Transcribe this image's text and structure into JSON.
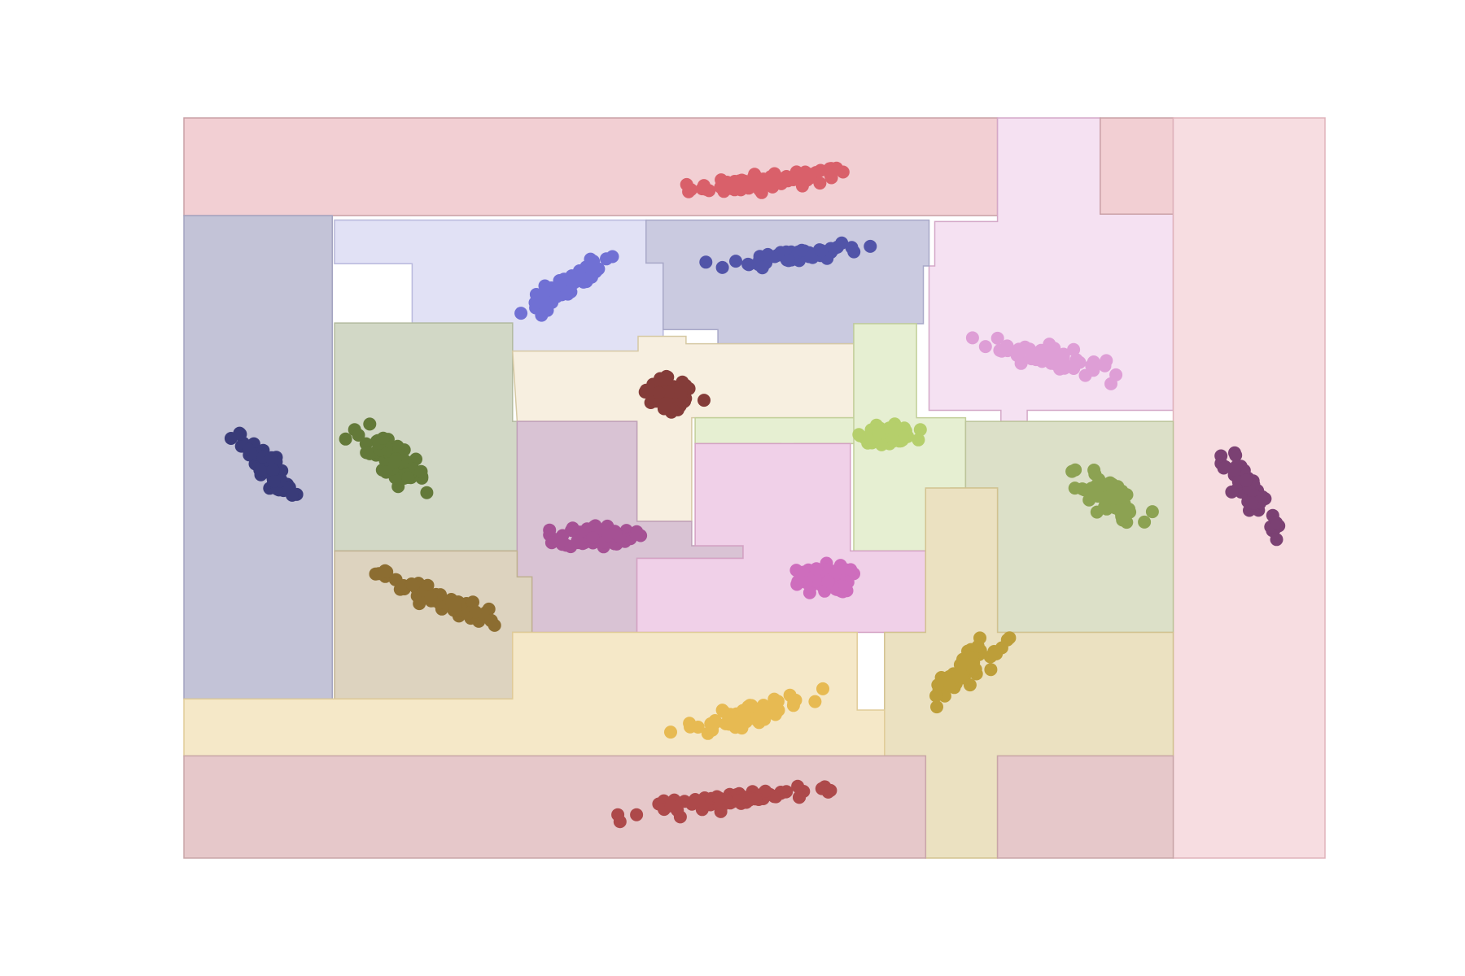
{
  "chart_data": {
    "type": "scatter",
    "title": "",
    "xlabel": "",
    "ylabel": "",
    "axes_visible": false,
    "grid": false,
    "legend": "none",
    "xlim": [
      0,
      100
    ],
    "ylim": [
      0,
      100
    ],
    "background_regions": [
      {
        "color": "#f2cfd3",
        "edge": "#c9a0a6",
        "poly": [
          [
            0,
            100
          ],
          [
            71.3,
            100
          ],
          [
            71.3,
            86.8
          ],
          [
            0,
            86.8
          ]
        ]
      },
      {
        "color": "#f5e1f2",
        "edge": "#d4a8c8",
        "poly": [
          [
            71.3,
            100
          ],
          [
            80.3,
            100
          ],
          [
            80.3,
            87
          ],
          [
            86.7,
            87
          ],
          [
            86.7,
            60.5
          ],
          [
            73.9,
            60.5
          ],
          [
            73.9,
            59
          ],
          [
            71.6,
            59
          ],
          [
            71.6,
            60.5
          ],
          [
            65.3,
            60.5
          ],
          [
            65.3,
            80
          ],
          [
            65.8,
            80
          ],
          [
            65.8,
            86
          ],
          [
            71.3,
            86
          ]
        ]
      },
      {
        "color": "#f2cfd3",
        "edge": "#c9a0a6",
        "poly": [
          [
            80.3,
            100
          ],
          [
            86.7,
            100
          ],
          [
            86.7,
            87
          ],
          [
            80.3,
            87
          ]
        ]
      },
      {
        "color": "#f7dde1",
        "edge": "#e0b3bb",
        "poly": [
          [
            86.7,
            100
          ],
          [
            100,
            100
          ],
          [
            100,
            0
          ],
          [
            86.7,
            0
          ]
        ]
      },
      {
        "color": "#c3c3d7",
        "edge": "#a3a3c0",
        "poly": [
          [
            0,
            86.8
          ],
          [
            13,
            86.8
          ],
          [
            13,
            21.5
          ],
          [
            0,
            21.5
          ]
        ]
      },
      {
        "color": "#d2d8c6",
        "edge": "#b3bb9f",
        "poly": [
          [
            13.2,
            86.2
          ],
          [
            19.8,
            86.2
          ],
          [
            19.8,
            80.3
          ],
          [
            13.2,
            80.3
          ]
        ]
      },
      {
        "color": "#e1e1f5",
        "edge": "#b9b9dd",
        "poly": [
          [
            13.2,
            86.2
          ],
          [
            40.5,
            86.2
          ],
          [
            40.5,
            80.4
          ],
          [
            42,
            80.4
          ],
          [
            42,
            66.3
          ],
          [
            28.8,
            66.3
          ],
          [
            28.8,
            72.3
          ],
          [
            20,
            72.3
          ],
          [
            20,
            80.3
          ],
          [
            13.2,
            80.3
          ]
        ]
      },
      {
        "color": "#cacae0",
        "edge": "#a8a8c8",
        "poly": [
          [
            40.5,
            86.2
          ],
          [
            65.3,
            86.2
          ],
          [
            65.3,
            80
          ],
          [
            64.8,
            80
          ],
          [
            64.8,
            72.2
          ],
          [
            58.7,
            72.2
          ],
          [
            58.7,
            69.5
          ],
          [
            46.8,
            69.5
          ],
          [
            46.8,
            71.4
          ],
          [
            42,
            71.4
          ],
          [
            42,
            80.4
          ],
          [
            40.5,
            80.4
          ]
        ]
      },
      {
        "color": "#d2d8c6",
        "edge": "#b3bb9f",
        "poly": [
          [
            13.2,
            72.3
          ],
          [
            28.8,
            72.3
          ],
          [
            28.8,
            59
          ],
          [
            29.2,
            59
          ],
          [
            29.2,
            41.5
          ],
          [
            13.2,
            41.5
          ]
        ]
      },
      {
        "color": "#f7efe0",
        "edge": "#d6c9a4",
        "poly": [
          [
            28.8,
            68.5
          ],
          [
            39.8,
            68.5
          ],
          [
            39.8,
            70.5
          ],
          [
            44,
            70.5
          ],
          [
            44,
            69.5
          ],
          [
            58.7,
            69.5
          ],
          [
            58.7,
            59.5
          ],
          [
            44.5,
            59.5
          ],
          [
            44.5,
            45.5
          ],
          [
            39.7,
            45.5
          ],
          [
            39.7,
            59
          ],
          [
            29.2,
            59
          ]
        ]
      },
      {
        "color": "#e6efd2",
        "edge": "#c2cf99",
        "poly": [
          [
            58.7,
            72.2
          ],
          [
            64.2,
            72.2
          ],
          [
            64.2,
            59.5
          ],
          [
            68.5,
            59.5
          ],
          [
            68.5,
            50
          ],
          [
            67.2,
            50
          ],
          [
            67.2,
            41.5
          ],
          [
            58.7,
            41.5
          ],
          [
            58.7,
            59.5
          ],
          [
            44.8,
            59.5
          ],
          [
            44.8,
            56
          ],
          [
            52.3,
            56
          ],
          [
            52.3,
            54
          ],
          [
            53.5,
            54
          ],
          [
            53.5,
            56
          ],
          [
            58.7,
            56
          ]
        ]
      },
      {
        "color": "#d9c3d4",
        "edge": "#bfa0b8",
        "poly": [
          [
            29.2,
            59
          ],
          [
            39.7,
            59
          ],
          [
            39.7,
            45.5
          ],
          [
            44.5,
            45.5
          ],
          [
            44.5,
            42.2
          ],
          [
            49,
            42.2
          ],
          [
            49,
            40.5
          ],
          [
            39.7,
            40.5
          ],
          [
            39.7,
            30.5
          ],
          [
            30.5,
            30.5
          ],
          [
            30.5,
            38
          ],
          [
            29.2,
            38
          ]
        ]
      },
      {
        "color": "#f0d0e8",
        "edge": "#d4a2c4",
        "poly": [
          [
            44.8,
            56
          ],
          [
            58.4,
            56
          ],
          [
            58.4,
            41.5
          ],
          [
            65,
            41.5
          ],
          [
            65,
            30.5
          ],
          [
            39.7,
            30.5
          ],
          [
            39.7,
            40.5
          ],
          [
            49,
            40.5
          ],
          [
            49,
            42.2
          ],
          [
            44.8,
            42.2
          ]
        ]
      },
      {
        "color": "#dce0c8",
        "edge": "#bcc49a",
        "poly": [
          [
            68.5,
            59
          ],
          [
            86.7,
            59
          ],
          [
            86.7,
            30.5
          ],
          [
            71.3,
            30.5
          ],
          [
            71.3,
            50
          ],
          [
            68.5,
            50
          ]
        ]
      },
      {
        "color": "#ddd3bf",
        "edge": "#c0b190",
        "poly": [
          [
            13.2,
            41.5
          ],
          [
            29.2,
            41.5
          ],
          [
            29.2,
            38
          ],
          [
            30.5,
            38
          ],
          [
            30.5,
            30.5
          ],
          [
            28.8,
            30.5
          ],
          [
            28.8,
            21.5
          ],
          [
            13.2,
            21.5
          ]
        ]
      },
      {
        "color": "#ebe1c1",
        "edge": "#d2c290",
        "poly": [
          [
            65,
            50
          ],
          [
            71.3,
            50
          ],
          [
            71.3,
            30.5
          ],
          [
            86.7,
            30.5
          ],
          [
            86.7,
            13.8
          ],
          [
            71.3,
            13.8
          ],
          [
            71.3,
            0
          ],
          [
            65,
            0
          ],
          [
            65,
            13.8
          ],
          [
            61.4,
            13.8
          ],
          [
            61.4,
            30.5
          ],
          [
            65,
            30.5
          ]
        ]
      },
      {
        "color": "#f5e8c8",
        "edge": "#e0cc98",
        "poly": [
          [
            0,
            21.5
          ],
          [
            28.8,
            21.5
          ],
          [
            28.8,
            30.5
          ],
          [
            59,
            30.5
          ],
          [
            59,
            20
          ],
          [
            61.4,
            20
          ],
          [
            61.4,
            13.8
          ],
          [
            0,
            13.8
          ]
        ]
      },
      {
        "color": "#e6c8ca",
        "edge": "#c9a6a8",
        "poly": [
          [
            0,
            13.8
          ],
          [
            65,
            13.8
          ],
          [
            65,
            0
          ],
          [
            0,
            0
          ]
        ]
      },
      {
        "color": "#e6c8ca",
        "edge": "#c9a6a8",
        "poly": [
          [
            71.3,
            13.8
          ],
          [
            86.7,
            13.8
          ],
          [
            86.7,
            0
          ],
          [
            71.3,
            0
          ]
        ]
      }
    ],
    "series": [
      {
        "color": "#d9606a",
        "center": [
          51.5,
          91.5
        ],
        "sd": [
          3.6,
          0.55
        ],
        "rot": 0.16,
        "n": 70
      },
      {
        "color": "#7070d4",
        "center": [
          33.8,
          77.5
        ],
        "sd": [
          2.5,
          0.6
        ],
        "rot": 0.85,
        "n": 60
      },
      {
        "color": "#5154a8",
        "center": [
          53.5,
          81.5
        ],
        "sd": [
          3.0,
          0.5
        ],
        "rot": 0.2,
        "n": 60
      },
      {
        "color": "#de9ed6",
        "center": [
          75.4,
          67.8
        ],
        "sd": [
          2.6,
          0.75
        ],
        "rot": -0.35,
        "n": 60
      },
      {
        "color": "#843c39",
        "center": [
          42.5,
          62.8
        ],
        "sd": [
          1.0,
          0.9
        ],
        "rot": 0.5,
        "n": 70
      },
      {
        "color": "#393b79",
        "center": [
          7.3,
          52.5
        ],
        "sd": [
          2.6,
          0.55
        ],
        "rot": -1.12,
        "n": 80
      },
      {
        "color": "#637939",
        "center": [
          18.3,
          53.5
        ],
        "sd": [
          2.1,
          0.8
        ],
        "rot": -1.05,
        "n": 70
      },
      {
        "color": "#b5cf6b",
        "center": [
          61.7,
          57.3
        ],
        "sd": [
          1.1,
          0.55
        ],
        "rot": 0.05,
        "n": 70
      },
      {
        "color": "#8ca252",
        "center": [
          80.8,
          49.0
        ],
        "sd": [
          2.1,
          0.9
        ],
        "rot": -0.9,
        "n": 60
      },
      {
        "color": "#7b4173",
        "center": [
          93.5,
          49.5
        ],
        "sd": [
          3.2,
          0.6
        ],
        "rot": -1.18,
        "n": 70
      },
      {
        "color": "#a55194",
        "center": [
          36.2,
          43.5
        ],
        "sd": [
          1.6,
          0.75
        ],
        "rot": 0.0,
        "n": 70
      },
      {
        "color": "#ce6dbd",
        "center": [
          56.0,
          37.5
        ],
        "sd": [
          1.2,
          0.95
        ],
        "rot": 0.2,
        "n": 70
      },
      {
        "color": "#8c6d31",
        "center": [
          22.5,
          34.8
        ],
        "sd": [
          3.0,
          0.6
        ],
        "rot": -0.55,
        "n": 70
      },
      {
        "color": "#bd9e39",
        "center": [
          68.5,
          25.5
        ],
        "sd": [
          2.5,
          0.7
        ],
        "rot": 0.95,
        "n": 60
      },
      {
        "color": "#e7ba52",
        "center": [
          49.5,
          19.5
        ],
        "sd": [
          2.8,
          0.6
        ],
        "rot": 0.38,
        "n": 70
      },
      {
        "color": "#ad494a",
        "center": [
          49.0,
          8.0
        ],
        "sd": [
          4.3,
          0.5
        ],
        "rot": 0.2,
        "n": 70
      }
    ]
  }
}
